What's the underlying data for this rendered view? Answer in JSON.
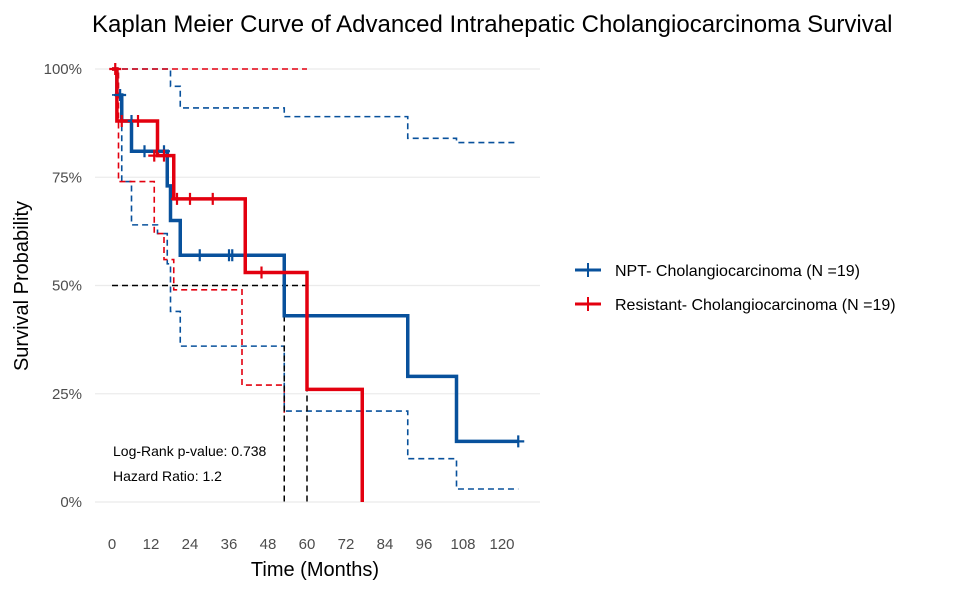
{
  "chart_data": {
    "type": "line",
    "subtype": "kaplan-meier",
    "title": "Kaplan Meier Curve of Advanced Intrahepatic Cholangiocarcinoma Survival",
    "xlabel": "Time (Months)",
    "ylabel": "Survival Probability",
    "xlim": [
      -4,
      130
    ],
    "ylim": [
      0,
      1
    ],
    "x_ticks": [
      0,
      12,
      24,
      36,
      48,
      60,
      72,
      84,
      96,
      108,
      120
    ],
    "x_tick_labels": [
      "0",
      "12",
      "24",
      "36",
      "48",
      "60",
      "72",
      "84",
      "96",
      "108",
      "120"
    ],
    "y_ticks": [
      0,
      0.25,
      0.5,
      0.75,
      1.0
    ],
    "y_tick_labels": [
      "0%",
      "25%",
      "50%",
      "75%",
      "100%"
    ],
    "grid": true,
    "legend_position": "right",
    "series": [
      {
        "name": "NPT- Cholangiocarcinoma (N =19)",
        "color": "#08519c",
        "steps": [
          [
            0,
            1.0
          ],
          [
            1.5,
            0.94
          ],
          [
            3,
            0.88
          ],
          [
            6,
            0.81
          ],
          [
            17,
            0.73
          ],
          [
            18,
            0.65
          ],
          [
            21,
            0.57
          ],
          [
            53,
            0.43
          ],
          [
            91,
            0.29
          ],
          [
            106,
            0.14
          ],
          [
            125,
            0.14
          ]
        ],
        "censored": [
          [
            2.5,
            0.94
          ],
          [
            6,
            0.88
          ],
          [
            10,
            0.81
          ],
          [
            16,
            0.81
          ],
          [
            27,
            0.57
          ],
          [
            36,
            0.57
          ],
          [
            37,
            0.57
          ],
          [
            125,
            0.14
          ]
        ],
        "ci_upper": [
          [
            0,
            1.0
          ],
          [
            17,
            1.0
          ],
          [
            18,
            0.96
          ],
          [
            21,
            0.91
          ],
          [
            53,
            0.89
          ],
          [
            91,
            0.84
          ],
          [
            106,
            0.83
          ],
          [
            125,
            0.83
          ]
        ],
        "ci_lower": [
          [
            0,
            0.94
          ],
          [
            3,
            0.74
          ],
          [
            6,
            0.64
          ],
          [
            14,
            0.62
          ],
          [
            17,
            0.55
          ],
          [
            18,
            0.44
          ],
          [
            21,
            0.36
          ],
          [
            53,
            0.21
          ],
          [
            91,
            0.1
          ],
          [
            106,
            0.03
          ],
          [
            125,
            0.03
          ]
        ]
      },
      {
        "name": "Resistant- Cholangiocarcinoma (N =19)",
        "color": "#e3000f",
        "steps": [
          [
            0,
            1.0
          ],
          [
            1.5,
            0.88
          ],
          [
            14,
            0.8
          ],
          [
            19,
            0.7
          ],
          [
            41,
            0.53
          ],
          [
            60,
            0.26
          ],
          [
            77,
            0.0
          ]
        ],
        "censored": [
          [
            1,
            1.0
          ],
          [
            3,
            0.88
          ],
          [
            8,
            0.88
          ],
          [
            13,
            0.8
          ],
          [
            16,
            0.8
          ],
          [
            20,
            0.7
          ],
          [
            24,
            0.7
          ],
          [
            31,
            0.7
          ],
          [
            46,
            0.53
          ]
        ],
        "ci_upper": [
          [
            0,
            1.0
          ],
          [
            60,
            1.0
          ]
        ],
        "ci_lower": [
          [
            0,
            1.0
          ],
          [
            2,
            0.74
          ],
          [
            13,
            0.62
          ],
          [
            16,
            0.56
          ],
          [
            19,
            0.49
          ],
          [
            40,
            0.27
          ],
          [
            53,
            0.2
          ]
        ]
      }
    ],
    "median_lines": [
      {
        "x": 53,
        "y": 0.5
      },
      {
        "x": 60,
        "y": 0.5
      }
    ],
    "annotations": [
      "Log-Rank p-value: 0.738",
      "Hazard Ratio: 1.2"
    ]
  }
}
